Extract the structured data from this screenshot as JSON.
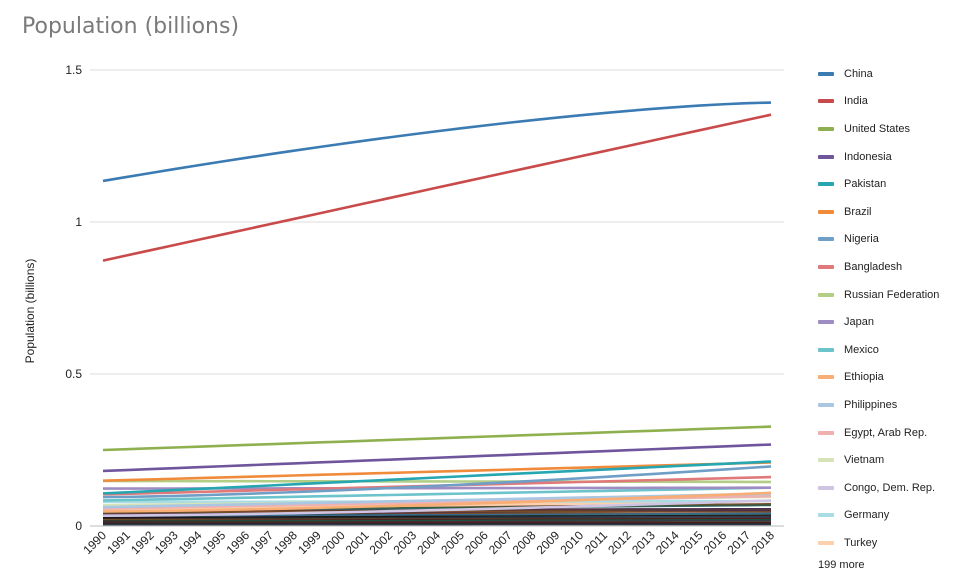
{
  "chart_data": {
    "type": "line",
    "title": "Population (billions)",
    "ylabel": "Population (billions)",
    "xlabel": "",
    "ylim": [
      0,
      1.5
    ],
    "yticks": [
      {
        "v": 0,
        "label": "0"
      },
      {
        "v": 0.5,
        "label": "0.5"
      },
      {
        "v": 1,
        "label": "1"
      },
      {
        "v": 1.5,
        "label": "1.5"
      }
    ],
    "grid": true,
    "legend_position": "right",
    "x": [
      "1990",
      "1991",
      "1992",
      "1993",
      "1994",
      "1995",
      "1996",
      "1997",
      "1998",
      "1999",
      "2000",
      "2001",
      "2002",
      "2003",
      "2004",
      "2005",
      "2006",
      "2007",
      "2008",
      "2009",
      "2010",
      "2011",
      "2012",
      "2013",
      "2014",
      "2015",
      "2016",
      "2017",
      "2018"
    ],
    "series": [
      {
        "name": "China",
        "color": "#3b7bb3",
        "start": 1.135,
        "end": 1.393,
        "curve": "concave"
      },
      {
        "name": "India",
        "color": "#c94a4a",
        "start": 0.873,
        "end": 1.353,
        "curve": "linear"
      },
      {
        "name": "United States",
        "color": "#8fb04f",
        "start": 0.25,
        "end": 0.327,
        "curve": "linear"
      },
      {
        "name": "Indonesia",
        "color": "#6e559c",
        "start": 0.181,
        "end": 0.268,
        "curve": "linear"
      },
      {
        "name": "Pakistan",
        "color": "#26a6b0",
        "start": 0.107,
        "end": 0.212,
        "curve": "linear"
      },
      {
        "name": "Brazil",
        "color": "#f08b3c",
        "start": 0.149,
        "end": 0.209,
        "curve": "linear"
      },
      {
        "name": "Nigeria",
        "color": "#6f9ec6",
        "start": 0.095,
        "end": 0.196,
        "curve": "convex"
      },
      {
        "name": "Bangladesh",
        "color": "#e07a7a",
        "start": 0.104,
        "end": 0.161,
        "curve": "linear"
      },
      {
        "name": "Russian Federation",
        "color": "#b2ce86",
        "start": 0.148,
        "end": 0.145,
        "curve": "linear"
      },
      {
        "name": "Japan",
        "color": "#9e8cc3",
        "start": 0.123,
        "end": 0.126,
        "curve": "linear"
      },
      {
        "name": "Mexico",
        "color": "#6cc3cc",
        "start": 0.084,
        "end": 0.126,
        "curve": "linear"
      },
      {
        "name": "Ethiopia",
        "color": "#f7ad73",
        "start": 0.048,
        "end": 0.109,
        "curve": "convex"
      },
      {
        "name": "Philippines",
        "color": "#a9c6e3",
        "start": 0.062,
        "end": 0.106,
        "curve": "linear"
      },
      {
        "name": "Egypt, Arab Rep.",
        "color": "#efb0b0",
        "start": 0.057,
        "end": 0.098,
        "curve": "linear"
      },
      {
        "name": "Vietnam",
        "color": "#d5e3b6",
        "start": 0.068,
        "end": 0.096,
        "curve": "linear"
      },
      {
        "name": "Congo, Dem. Rep.",
        "color": "#cfc4e3",
        "start": 0.034,
        "end": 0.084,
        "curve": "convex"
      },
      {
        "name": "Germany",
        "color": "#a9dde3",
        "start": 0.079,
        "end": 0.082,
        "curve": "linear"
      },
      {
        "name": "Turkey",
        "color": "#fbd0ad",
        "start": 0.054,
        "end": 0.082,
        "curve": "linear"
      }
    ],
    "more_label": "199 more"
  }
}
